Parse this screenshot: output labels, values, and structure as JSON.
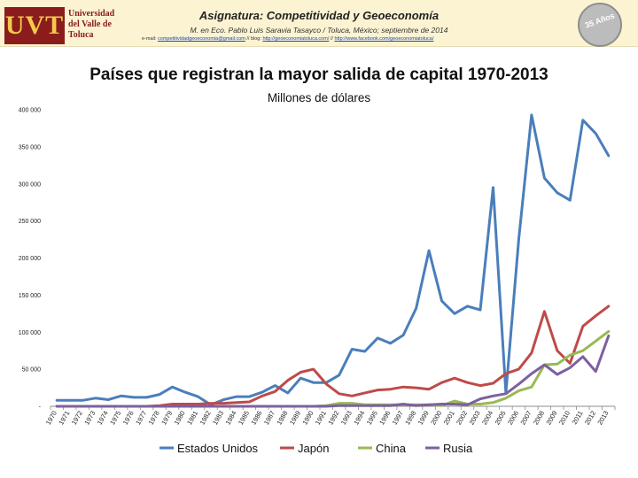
{
  "header": {
    "course_title": "Asignatura: Competitividad y Geoeconomía",
    "author_line": "M. en Eco. Pablo Luis Saravia Tasayco / Toluca, México; septiembre de 2014",
    "contact_prefix": "e-mail: ",
    "contact_email": "competitividadgeoeconomia@gmail.com",
    "contact_sep1": "  //  blog: ",
    "contact_blog": "http://geoeconomiatoluca.com/",
    "contact_sep2": "  //  ",
    "contact_fb": "http://www.facebook.com/geoeconomiatoluca/",
    "logo_mark": "UVT",
    "logo_text": "Universidad del Valle de Toluca",
    "seal_text": "35 Años"
  },
  "chart_data": {
    "type": "line",
    "title": "Países que registran la mayor salida de capital 1970-2013",
    "subtitle": "Millones de dólares",
    "xlabel": "",
    "ylabel": "",
    "ylim": [
      0,
      400000
    ],
    "yticks": [
      0,
      50000,
      100000,
      150000,
      200000,
      250000,
      300000,
      350000,
      400000
    ],
    "ytick_labels": [
      "-",
      "50 000",
      "100 000",
      "150 000",
      "200 000",
      "250 000",
      "300 000",
      "350 000",
      "400 000"
    ],
    "x": [
      "1970",
      "1971",
      "1972",
      "1973",
      "1974",
      "1975",
      "1976",
      "1977",
      "1978",
      "1979",
      "1980",
      "1981",
      "1982",
      "1983",
      "1984",
      "1985",
      "1986",
      "1987",
      "1988",
      "1989",
      "1990",
      "1991",
      "1992",
      "1993",
      "1994",
      "1995",
      "1996",
      "1997",
      "1998",
      "1999",
      "2000",
      "2001",
      "2002",
      "2003",
      "2004",
      "2005",
      "2006",
      "2007",
      "2008",
      "2009",
      "2010",
      "2011",
      "2012",
      "2013"
    ],
    "legend_position": "bottom",
    "series": [
      {
        "name": "Estados Unidos",
        "color": "#4a7ebb",
        "values": [
          8000,
          8000,
          8000,
          11000,
          9000,
          14000,
          12000,
          12000,
          16000,
          26000,
          19000,
          13000,
          2000,
          9000,
          13000,
          13000,
          19000,
          28000,
          18000,
          38000,
          32000,
          32000,
          42000,
          77000,
          74000,
          92000,
          85000,
          96000,
          132000,
          210000,
          142000,
          125000,
          135000,
          130000,
          295000,
          18000,
          225000,
          393000,
          308000,
          288000,
          278000,
          386000,
          368000,
          338000
        ]
      },
      {
        "name": "Japón",
        "color": "#be4b48",
        "values": [
          0,
          0,
          0,
          0,
          0,
          0,
          0,
          0,
          1000,
          3000,
          3000,
          3000,
          4000,
          4000,
          5000,
          6000,
          14000,
          20000,
          35000,
          46000,
          50000,
          30000,
          17000,
          14000,
          18000,
          22000,
          23000,
          26000,
          25000,
          23000,
          32000,
          38000,
          32000,
          28000,
          31000,
          44000,
          50000,
          72000,
          128000,
          75000,
          58000,
          108000,
          122000,
          135000
        ]
      },
      {
        "name": "China",
        "color": "#98b954",
        "values": [
          0,
          0,
          0,
          0,
          0,
          0,
          0,
          0,
          0,
          0,
          0,
          0,
          0,
          0,
          0,
          0,
          0,
          0,
          0,
          0,
          0,
          1000,
          4000,
          4000,
          2000,
          2000,
          2000,
          2000,
          2000,
          2000,
          1000,
          7000,
          3000,
          3000,
          5000,
          11000,
          21000,
          26000,
          56000,
          57000,
          69000,
          75000,
          88000,
          101000
        ]
      },
      {
        "name": "Rusia",
        "color": "#7d60a0",
        "values": [
          0,
          0,
          0,
          0,
          0,
          0,
          0,
          0,
          0,
          0,
          0,
          0,
          0,
          0,
          0,
          0,
          0,
          0,
          0,
          0,
          0,
          0,
          1000,
          1000,
          1000,
          1000,
          1000,
          3000,
          1000,
          2000,
          3000,
          3000,
          2000,
          10000,
          14000,
          17000,
          30000,
          44000,
          56000,
          43000,
          52000,
          67000,
          47000,
          95000
        ]
      }
    ]
  }
}
